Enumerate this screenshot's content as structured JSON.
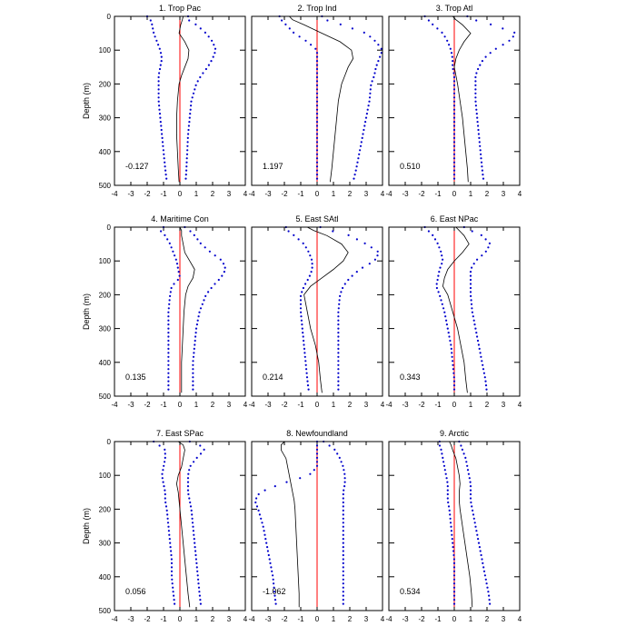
{
  "chart_data": {
    "type": "line",
    "ylabel": "Depth (m)",
    "xlim": [
      -4,
      4
    ],
    "ylim": [
      500,
      0
    ],
    "y_inverted": true,
    "xticks": [
      "-4",
      "-3",
      "-2",
      "-1",
      "0",
      "1",
      "2",
      "3",
      "4"
    ],
    "yticks": [
      "0",
      "100",
      "200",
      "300",
      "400",
      "500"
    ],
    "depths": [
      0,
      10,
      25,
      50,
      75,
      100,
      125,
      150,
      175,
      200,
      250,
      300,
      350,
      400,
      450,
      490
    ],
    "zero_line_color": "#ff0000",
    "mean_color": "#000000",
    "bound_color": "#0000cc",
    "panels": [
      {
        "title": "1. Trop Pac",
        "value_label": "-0.127",
        "mean": [
          0.2,
          0.15,
          0.05,
          -0.05,
          0.3,
          0.55,
          0.5,
          0.3,
          0.1,
          -0.05,
          -0.15,
          -0.2,
          -0.2,
          -0.15,
          -0.1,
          -0.05
        ],
        "lower": [
          -2.0,
          -1.8,
          -1.7,
          -1.6,
          -1.4,
          -1.2,
          -1.1,
          -1.2,
          -1.3,
          -1.3,
          -1.3,
          -1.2,
          -1.1,
          -1.0,
          -0.9,
          -0.8
        ],
        "upper": [
          0.5,
          0.5,
          1.0,
          1.6,
          2.0,
          2.2,
          2.0,
          1.7,
          1.3,
          1.0,
          0.7,
          0.6,
          0.5,
          0.45,
          0.4,
          0.35
        ]
      },
      {
        "title": "2. Trop Ind",
        "value_label": "1.197",
        "mean": [
          -1.7,
          -1.5,
          -0.8,
          0.3,
          1.4,
          2.1,
          2.2,
          1.9,
          1.7,
          1.5,
          1.3,
          1.2,
          1.1,
          1.0,
          0.9,
          0.8
        ],
        "lower": [
          -2.3,
          -2.2,
          -1.9,
          -1.4,
          -0.6,
          0.0,
          0.0,
          0.0,
          0.0,
          0.0,
          0.0,
          0.0,
          0.0,
          0.0,
          0.0,
          0.0
        ],
        "upper": [
          0.3,
          0.5,
          1.5,
          3.0,
          3.6,
          4.0,
          3.8,
          3.6,
          3.5,
          3.3,
          3.2,
          3.0,
          2.8,
          2.6,
          2.4,
          2.2
        ]
      },
      {
        "title": "3. Trop Atl",
        "value_label": "0.510",
        "mean": [
          -0.1,
          0.1,
          0.5,
          1.0,
          0.6,
          0.3,
          0.1,
          0.0,
          0.1,
          0.2,
          0.35,
          0.5,
          0.6,
          0.7,
          0.8,
          0.85
        ],
        "lower": [
          -1.8,
          -1.6,
          -1.3,
          -0.7,
          -0.4,
          -0.2,
          -0.1,
          -0.1,
          0.0,
          0.0,
          0.0,
          0.0,
          0.0,
          0.0,
          0.0,
          0.0
        ],
        "upper": [
          0.8,
          1.2,
          2.3,
          3.8,
          3.3,
          2.4,
          1.8,
          1.5,
          1.3,
          1.3,
          1.3,
          1.4,
          1.5,
          1.6,
          1.7,
          1.8
        ]
      },
      {
        "title": "4. Maritime Con",
        "value_label": "0.135",
        "mean": [
          0.0,
          0.1,
          0.1,
          0.2,
          0.3,
          0.6,
          0.9,
          0.8,
          0.5,
          0.35,
          0.25,
          0.2,
          0.15,
          0.1,
          0.1,
          0.1
        ],
        "lower": [
          -1.0,
          -1.2,
          -0.9,
          -0.6,
          -0.4,
          -0.2,
          -0.1,
          0.0,
          -0.5,
          -0.6,
          -0.7,
          -0.7,
          -0.7,
          -0.7,
          -0.7,
          -0.7
        ],
        "upper": [
          0.3,
          0.6,
          0.9,
          1.3,
          1.9,
          2.6,
          2.8,
          2.5,
          2.0,
          1.6,
          1.2,
          1.0,
          0.9,
          0.8,
          0.8,
          0.8
        ]
      },
      {
        "title": "5. East SAtl",
        "value_label": "0.214",
        "mean": [
          -0.6,
          -0.2,
          0.6,
          1.5,
          1.9,
          1.6,
          1.0,
          0.3,
          -0.4,
          -0.8,
          -0.6,
          -0.4,
          -0.1,
          0.1,
          0.2,
          0.3
        ],
        "lower": [
          -1.9,
          -1.8,
          -1.4,
          -0.8,
          -0.5,
          -0.3,
          -0.3,
          -0.5,
          -0.8,
          -1.0,
          -1.0,
          -0.9,
          -0.8,
          -0.7,
          -0.6,
          -0.5
        ],
        "upper": [
          0.2,
          0.8,
          2.0,
          3.0,
          3.8,
          3.5,
          2.6,
          2.0,
          1.6,
          1.4,
          1.3,
          1.3,
          1.3,
          1.3,
          1.3,
          1.3
        ]
      },
      {
        "title": "6. East NPac",
        "value_label": "0.343",
        "mean": [
          0.1,
          0.3,
          0.6,
          0.9,
          0.5,
          0.0,
          -0.4,
          -0.6,
          -0.7,
          -0.4,
          -0.1,
          0.2,
          0.4,
          0.6,
          0.7,
          0.8
        ],
        "lower": [
          -1.8,
          -1.6,
          -1.3,
          -1.0,
          -0.8,
          -0.7,
          -0.9,
          -1.0,
          -1.1,
          -0.9,
          -0.6,
          -0.4,
          -0.2,
          -0.1,
          0.0,
          0.0
        ],
        "upper": [
          0.6,
          1.0,
          1.7,
          2.2,
          1.9,
          1.3,
          1.0,
          1.0,
          1.0,
          1.0,
          1.1,
          1.3,
          1.5,
          1.7,
          1.9,
          2.0
        ]
      },
      {
        "title": "7. East SPac",
        "value_label": "0.056",
        "mean": [
          -0.1,
          0.2,
          0.3,
          0.2,
          0.1,
          -0.1,
          -0.2,
          -0.1,
          -0.05,
          0.0,
          0.1,
          0.2,
          0.3,
          0.4,
          0.5,
          0.6
        ],
        "lower": [
          -1.6,
          -1.3,
          -0.9,
          -0.9,
          -1.0,
          -1.1,
          -1.0,
          -0.9,
          -0.9,
          -0.8,
          -0.7,
          -0.6,
          -0.5,
          -0.5,
          -0.4,
          -0.3
        ],
        "upper": [
          0.6,
          1.2,
          1.5,
          1.0,
          0.6,
          0.5,
          0.5,
          0.5,
          0.6,
          0.7,
          0.8,
          0.9,
          1.0,
          1.1,
          1.2,
          1.3
        ]
      },
      {
        "title": "8. Newfoundland",
        "value_label": "-1.062",
        "mean": [
          -2.0,
          -2.2,
          -2.2,
          -1.9,
          -1.8,
          -1.7,
          -1.6,
          -1.5,
          -1.4,
          -1.35,
          -1.3,
          -1.25,
          -1.2,
          -1.15,
          -1.1,
          -1.1
        ],
        "lower": [
          0.0,
          0.0,
          0.0,
          0.0,
          0.0,
          -0.5,
          -2.2,
          -3.5,
          -3.8,
          -3.6,
          -3.3,
          -3.1,
          -2.9,
          -2.7,
          -2.6,
          -2.5
        ],
        "upper": [
          0.4,
          0.7,
          1.1,
          1.4,
          1.6,
          1.7,
          1.7,
          1.6,
          1.6,
          1.6,
          1.6,
          1.6,
          1.6,
          1.6,
          1.6,
          1.6
        ]
      },
      {
        "title": "9. Arctic",
        "value_label": "0.534",
        "mean": [
          -0.3,
          -0.2,
          -0.1,
          0.1,
          0.2,
          0.3,
          0.35,
          0.3,
          0.3,
          0.35,
          0.5,
          0.65,
          0.8,
          0.95,
          1.05,
          1.1
        ],
        "lower": [
          -0.9,
          -0.9,
          -0.8,
          -0.7,
          -0.6,
          -0.5,
          -0.4,
          -0.4,
          -0.4,
          -0.3,
          -0.2,
          -0.1,
          0.0,
          0.0,
          0.0,
          0.0
        ],
        "upper": [
          0.3,
          0.4,
          0.5,
          0.7,
          0.8,
          0.9,
          1.0,
          1.0,
          1.0,
          1.1,
          1.3,
          1.5,
          1.7,
          1.9,
          2.1,
          2.2
        ]
      }
    ]
  }
}
